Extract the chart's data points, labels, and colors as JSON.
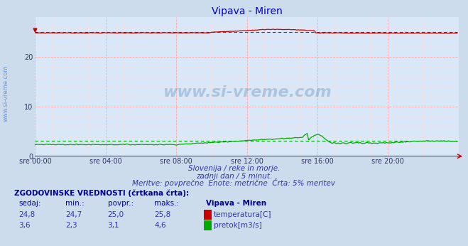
{
  "title": "Vipava - Miren",
  "title_color": "#0000cc",
  "bg_color": "#ccdcec",
  "plot_bg_color": "#d8e8f8",
  "xlabel_ticks": [
    "sre 00:00",
    "sre 04:00",
    "sre 08:00",
    "sre 12:00",
    "sre 16:00",
    "sre 20:00"
  ],
  "ylabel_ticks": [
    0,
    10,
    20
  ],
  "ylim": [
    0,
    28
  ],
  "xlim": [
    0,
    288
  ],
  "grid_color": "#ffaaaa",
  "grid_minor_color": "#ffdddd",
  "temp_color": "#cc0000",
  "flow_color": "#00aa00",
  "watermark_text": "www.si-vreme.com",
  "watermark_color": "#4477aa",
  "side_text": "www.si-vreme.com",
  "side_text_color": "#4477cc",
  "subtitle1": "Slovenija / reke in morje.",
  "subtitle2": "zadnji dan / 5 minut.",
  "subtitle3": "Meritve: povprečne  Enote: metrične  Črta: 5% meritev",
  "table_header": "ZGODOVINSKE VREDNOSTI (črtkana črta):",
  "col_headers": [
    "sedaj:",
    "min.:",
    "povpr.:",
    "maks.:",
    "Vipava - Miren"
  ],
  "row1": [
    "24,8",
    "24,7",
    "25,0",
    "25,8",
    "temperatura[C]"
  ],
  "row2": [
    "3,6",
    "2,3",
    "3,1",
    "4,6",
    "pretok[m3/s]"
  ],
  "temp_mean": 25.0,
  "temp_min": 24.7,
  "temp_max": 25.8,
  "temp_current": 24.8,
  "flow_mean": 3.1,
  "flow_min": 2.3,
  "flow_max": 4.6,
  "flow_current": 3.6,
  "n_points": 288,
  "blue_line_color": "#0000cc",
  "red_arrow_color": "#cc0000",
  "tick_color": "#333366",
  "subtitle_color": "#3333aa",
  "table_text_color": "#000099",
  "table_val_color": "#3333aa"
}
